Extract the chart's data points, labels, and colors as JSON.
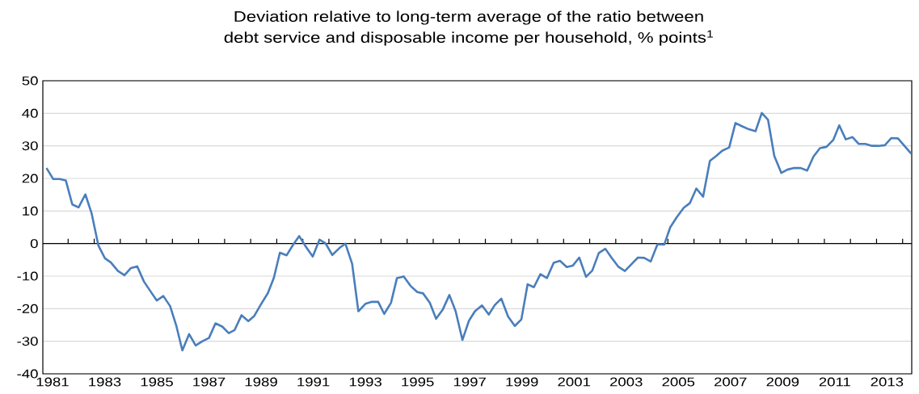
{
  "chart_data": {
    "type": "line",
    "title": "Deviation relative to long-term average of the ratio between debt service and disposable income per household, % points$^{1}$",
    "x": [
      1980.77,
      1981.03,
      1981.28,
      1981.51,
      1981.76,
      1982.0,
      1982.26,
      1982.5,
      1982.76,
      1983.01,
      1983.24,
      1983.51,
      1983.76,
      1984.01,
      1984.25,
      1984.51,
      1984.77,
      1985.0,
      1985.25,
      1985.51,
      1985.75,
      1985.98,
      1986.24,
      1986.49,
      1986.75,
      1987.0,
      1987.25,
      1987.51,
      1987.76,
      1987.98,
      1988.25,
      1988.51,
      1988.74,
      1989.0,
      1989.26,
      1989.49,
      1989.72,
      1989.98,
      1990.24,
      1990.46,
      1990.72,
      1990.98,
      1991.24,
      1991.47,
      1991.73,
      1992.0,
      1992.23,
      1992.49,
      1992.73,
      1993.0,
      1993.25,
      1993.49,
      1993.72,
      1993.98,
      1994.21,
      1994.47,
      1994.73,
      1994.99,
      1995.21,
      1995.47,
      1995.71,
      1995.97,
      1996.22,
      1996.46,
      1996.72,
      1996.97,
      1997.2,
      1997.47,
      1997.73,
      1997.96,
      1998.21,
      1998.47,
      1998.73,
      1998.98,
      1999.22,
      1999.46,
      1999.71,
      1999.96,
      2000.22,
      2000.46,
      2000.72,
      2000.95,
      2001.2,
      2001.46,
      2001.7,
      2001.95,
      2002.2,
      2002.45,
      2002.71,
      2002.95,
      2003.22,
      2003.45,
      2003.69,
      2003.94,
      2004.2,
      2004.46,
      2004.69,
      2004.94,
      2005.21,
      2005.44,
      2005.69,
      2005.95,
      2006.21,
      2006.45,
      2006.68,
      2006.95,
      2007.19,
      2007.45,
      2007.7,
      2007.96,
      2008.2,
      2008.44,
      2008.68,
      2008.95,
      2009.18,
      2009.44,
      2009.69,
      2009.94,
      2010.18,
      2010.43,
      2010.68,
      2010.94,
      2011.17,
      2011.42,
      2011.68,
      2011.92,
      2012.17,
      2012.43,
      2012.67,
      2012.92,
      2013.17,
      2013.42,
      2013.67,
      2013.93
    ],
    "series": [
      {
        "color": "#4a7ebb",
        "values": [
          23.2,
          19.8,
          19.8,
          19.4,
          12.0,
          11.1,
          15.1,
          9.3,
          -0.6,
          -4.5,
          -5.8,
          -8.4,
          -9.7,
          -7.5,
          -7.0,
          -11.7,
          -14.8,
          -17.5,
          -16.1,
          -19.2,
          -25.3,
          -32.8,
          -27.8,
          -31.3,
          -30.0,
          -29.0,
          -24.5,
          -25.5,
          -27.5,
          -26.6,
          -22.0,
          -23.8,
          -22.2,
          -18.6,
          -15.2,
          -10.5,
          -2.8,
          -3.6,
          -0.2,
          2.3,
          -1.0,
          -4.0,
          1.2,
          0.1,
          -3.5,
          -1.4,
          0.0,
          -6.2,
          -20.8,
          -18.5,
          -17.9,
          -17.9,
          -21.6,
          -18.2,
          -10.6,
          -10.1,
          -13.0,
          -14.9,
          -15.3,
          -18.2,
          -23.1,
          -20.2,
          -15.8,
          -20.8,
          -29.6,
          -23.7,
          -20.8,
          -19.0,
          -21.8,
          -18.9,
          -16.9,
          -22.4,
          -25.3,
          -23.3,
          -12.5,
          -13.4,
          -9.4,
          -10.6,
          -5.9,
          -5.3,
          -7.2,
          -6.8,
          -4.3,
          -10.2,
          -8.3,
          -2.9,
          -1.6,
          -4.5,
          -7.2,
          -8.4,
          -6.2,
          -4.3,
          -4.4,
          -5.5,
          -0.2,
          -0.3,
          5.0,
          8.1,
          11.0,
          12.4,
          16.9,
          14.4,
          25.4,
          26.9,
          28.5,
          29.5,
          37.0,
          36.0,
          35.1,
          34.5,
          40.1,
          38.0,
          26.9,
          21.7,
          22.7,
          23.2,
          23.2,
          22.4,
          26.7,
          29.3,
          29.7,
          31.8,
          36.3,
          32.0,
          32.7,
          30.6,
          30.6,
          30.0,
          30.0,
          30.2,
          32.4,
          32.3,
          30.0,
          27.6
        ]
      }
    ],
    "xlim": [
      1980.63,
      2013.95
    ],
    "xticks": [
      1981,
      {
        "value": 1981.6,
        "label": null
      },
      {
        "value": 1982.6,
        "label": null
      },
      1983,
      {
        "value": 1983.6,
        "label": null
      },
      {
        "value": 1984.6,
        "label": null
      },
      1985,
      {
        "value": 1985.6,
        "label": null
      },
      {
        "value": 1986.6,
        "label": null
      },
      1987,
      {
        "value": 1987.6,
        "label": null
      },
      {
        "value": 1988.6,
        "label": null
      },
      1989,
      {
        "value": 1989.6,
        "label": null
      },
      {
        "value": 1990.6,
        "label": null
      },
      1991,
      {
        "value": 1991.6,
        "label": null
      },
      {
        "value": 1992.6,
        "label": null
      },
      1993,
      {
        "value": 1993.6,
        "label": null
      },
      {
        "value": 1994.6,
        "label": null
      },
      1995,
      {
        "value": 1995.6,
        "label": null
      },
      {
        "value": 1996.6,
        "label": null
      },
      1997,
      {
        "value": 1997.6,
        "label": null
      },
      {
        "value": 1998.6,
        "label": null
      },
      1999,
      {
        "value": 1999.6,
        "label": null
      },
      {
        "value": 2000.6,
        "label": null
      },
      2001,
      {
        "value": 2001.6,
        "label": null
      },
      {
        "value": 2002.6,
        "label": null
      },
      2003,
      {
        "value": 2003.6,
        "label": null
      },
      {
        "value": 2004.6,
        "label": null
      },
      2005,
      {
        "value": 2005.6,
        "label": null
      },
      {
        "value": 2006.6,
        "label": null
      },
      2007,
      {
        "value": 2007.6,
        "label": null
      },
      {
        "value": 2008.6,
        "label": null
      },
      2009,
      {
        "value": 2009.6,
        "label": null
      },
      {
        "value": 2010.6,
        "label": null
      },
      2011,
      {
        "value": 2011.6,
        "label": null
      },
      {
        "value": 2012.6,
        "label": null
      },
      2013,
      {
        "value": 2013.6,
        "label": null
      }
    ],
    "ylim": [
      -40,
      50
    ],
    "yticks": [
      -40,
      -30,
      -20,
      -10,
      0,
      10,
      20,
      30,
      40,
      50
    ],
    "grid": "y",
    "ref_lines": [
      {
        "axis": "y",
        "value": 0,
        "color": "#000000"
      }
    ],
    "marker": "none",
    "line_style": "solid"
  }
}
